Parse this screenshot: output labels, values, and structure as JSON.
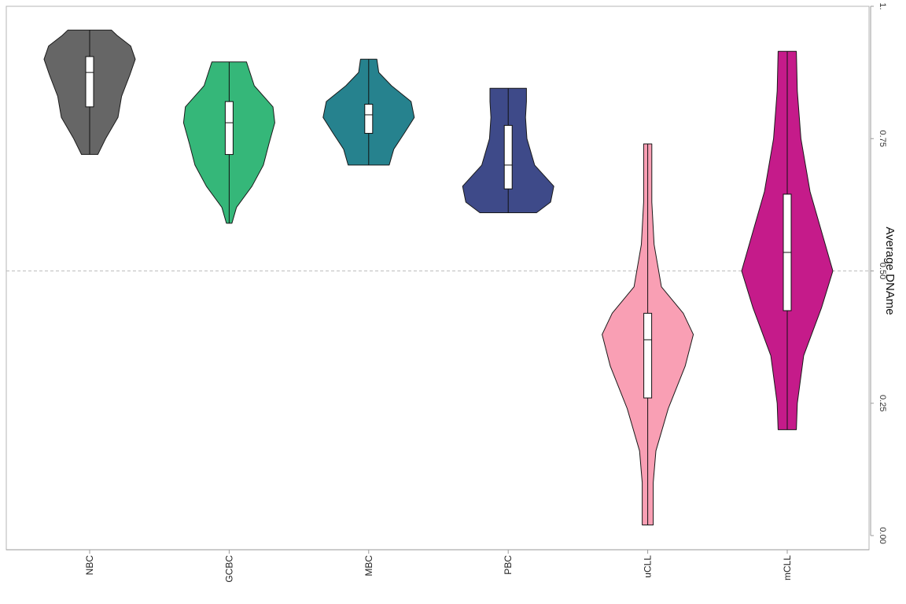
{
  "chart_data": {
    "type": "violin",
    "title": "",
    "xlabel": "",
    "ylabel": "Average DNAme",
    "ylim": [
      0,
      1
    ],
    "y_ticks": [
      0.0,
      0.25,
      0.5,
      0.75,
      1.0
    ],
    "y_tick_labels": [
      "0.00",
      "0.25",
      "0.50",
      "0.75",
      "1."
    ],
    "reference_line": 0.5,
    "grid": false,
    "legend": "none",
    "orientation": "rotated 90 degrees clockwise",
    "categories": [
      "NBC",
      "GCBC",
      "MBC",
      "PBC",
      "uCLL",
      "mCLL"
    ],
    "series": [
      {
        "category": "NBC",
        "color": "#666666",
        "min": 0.72,
        "q1": 0.81,
        "median": 0.875,
        "q3": 0.905,
        "max": 0.955,
        "density": [
          [
            0.72,
            0.18
          ],
          [
            0.75,
            0.35
          ],
          [
            0.79,
            0.62
          ],
          [
            0.83,
            0.7
          ],
          [
            0.87,
            0.88
          ],
          [
            0.9,
            1.0
          ],
          [
            0.925,
            0.9
          ],
          [
            0.945,
            0.6
          ],
          [
            0.955,
            0.48
          ]
        ]
      },
      {
        "category": "GCBC",
        "color": "#35B779",
        "min": 0.59,
        "q1": 0.72,
        "median": 0.78,
        "q3": 0.82,
        "max": 0.895,
        "density": [
          [
            0.59,
            0.06
          ],
          [
            0.62,
            0.16
          ],
          [
            0.66,
            0.5
          ],
          [
            0.7,
            0.75
          ],
          [
            0.74,
            0.87
          ],
          [
            0.78,
            1.0
          ],
          [
            0.81,
            0.96
          ],
          [
            0.85,
            0.55
          ],
          [
            0.895,
            0.38
          ]
        ]
      },
      {
        "category": "MBC",
        "color": "#26828E",
        "min": 0.7,
        "q1": 0.76,
        "median": 0.795,
        "q3": 0.815,
        "max": 0.9,
        "density": [
          [
            0.7,
            0.45
          ],
          [
            0.73,
            0.55
          ],
          [
            0.76,
            0.78
          ],
          [
            0.79,
            1.0
          ],
          [
            0.82,
            0.93
          ],
          [
            0.85,
            0.5
          ],
          [
            0.875,
            0.22
          ],
          [
            0.9,
            0.18
          ]
        ]
      },
      {
        "category": "PBC",
        "color": "#3E4A89",
        "min": 0.61,
        "q1": 0.655,
        "median": 0.7,
        "q3": 0.775,
        "max": 0.845,
        "density": [
          [
            0.61,
            0.62
          ],
          [
            0.63,
            0.93
          ],
          [
            0.66,
            1.0
          ],
          [
            0.7,
            0.58
          ],
          [
            0.75,
            0.41
          ],
          [
            0.79,
            0.38
          ],
          [
            0.82,
            0.4
          ],
          [
            0.845,
            0.4
          ]
        ]
      },
      {
        "category": "uCLL",
        "color": "#F99FB4",
        "min": 0.02,
        "q1": 0.26,
        "median": 0.37,
        "q3": 0.42,
        "max": 0.74,
        "density": [
          [
            0.02,
            0.12
          ],
          [
            0.1,
            0.12
          ],
          [
            0.16,
            0.18
          ],
          [
            0.24,
            0.45
          ],
          [
            0.32,
            0.82
          ],
          [
            0.38,
            1.0
          ],
          [
            0.42,
            0.78
          ],
          [
            0.47,
            0.3
          ],
          [
            0.55,
            0.14
          ],
          [
            0.63,
            0.09
          ],
          [
            0.7,
            0.09
          ],
          [
            0.74,
            0.09
          ]
        ]
      },
      {
        "category": "mCLL",
        "color": "#C51B8A",
        "min": 0.2,
        "q1": 0.425,
        "median": 0.535,
        "q3": 0.645,
        "max": 0.915,
        "density": [
          [
            0.2,
            0.2
          ],
          [
            0.25,
            0.22
          ],
          [
            0.34,
            0.36
          ],
          [
            0.43,
            0.75
          ],
          [
            0.5,
            1.0
          ],
          [
            0.56,
            0.8
          ],
          [
            0.65,
            0.5
          ],
          [
            0.75,
            0.3
          ],
          [
            0.84,
            0.22
          ],
          [
            0.915,
            0.2
          ]
        ]
      }
    ]
  }
}
